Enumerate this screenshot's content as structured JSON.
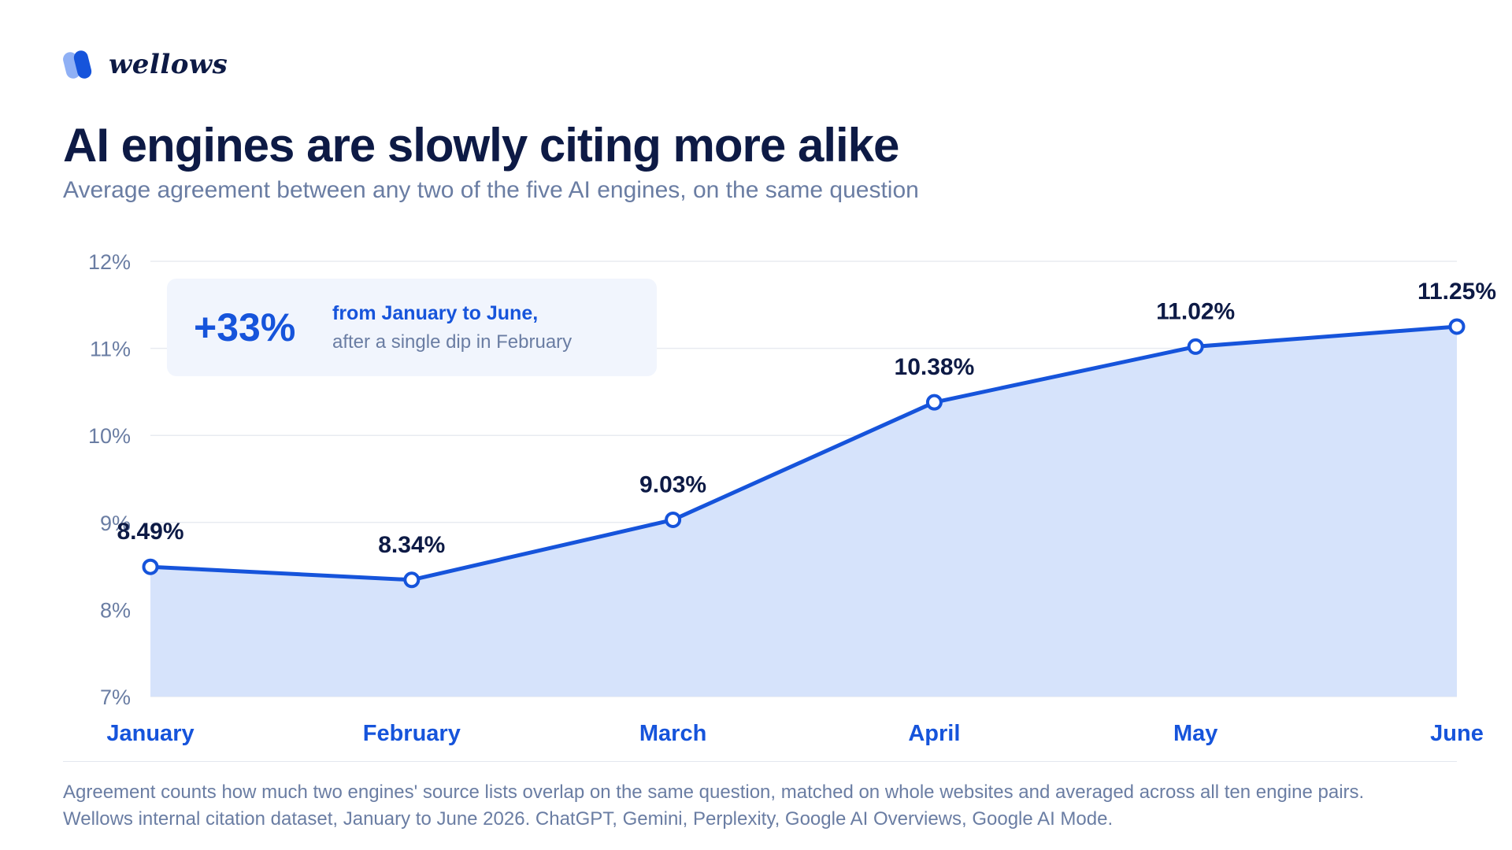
{
  "brand": {
    "name": "wellows",
    "logo_icon": "wellows-logo-icon",
    "logo_colors": [
      "#1654db",
      "#8fb0f5"
    ]
  },
  "title": "AI engines are slowly citing more alike",
  "subtitle": "Average agreement between any two of the five AI engines, on the same question",
  "callout": {
    "value": "+33%",
    "line1": "from January to June,",
    "line2": "after a single dip in February"
  },
  "colors": {
    "accent": "#1654db",
    "area_fill": "#d6e3fb",
    "title": "#0d1a45",
    "muted": "#6a7da3",
    "grid": "#e8ebf1"
  },
  "footnote": {
    "line1": "Agreement counts how much two engines' source lists overlap on the same question, matched on whole websites and averaged across all ten engine pairs.",
    "line2": "Wellows internal citation dataset, January to June 2026. ChatGPT, Gemini, Perplexity, Google AI Overviews, Google AI Mode."
  },
  "chart_data": {
    "type": "area",
    "categories": [
      "January",
      "February",
      "March",
      "April",
      "May",
      "June"
    ],
    "series": [
      {
        "values": [
          8.49,
          8.34,
          9.03,
          10.38,
          11.02,
          11.25
        ],
        "labels": [
          "8.49%",
          "8.34%",
          "9.03%",
          "10.38%",
          "11.02%",
          "11.25%"
        ]
      }
    ],
    "ylim": [
      7,
      12
    ],
    "yticks": [
      7,
      8,
      9,
      10,
      11,
      12
    ],
    "ytick_labels": [
      "7%",
      "8%",
      "9%",
      "10%",
      "11%",
      "12%"
    ],
    "grid": true,
    "legend": "none",
    "markers": "hollow-circle"
  }
}
